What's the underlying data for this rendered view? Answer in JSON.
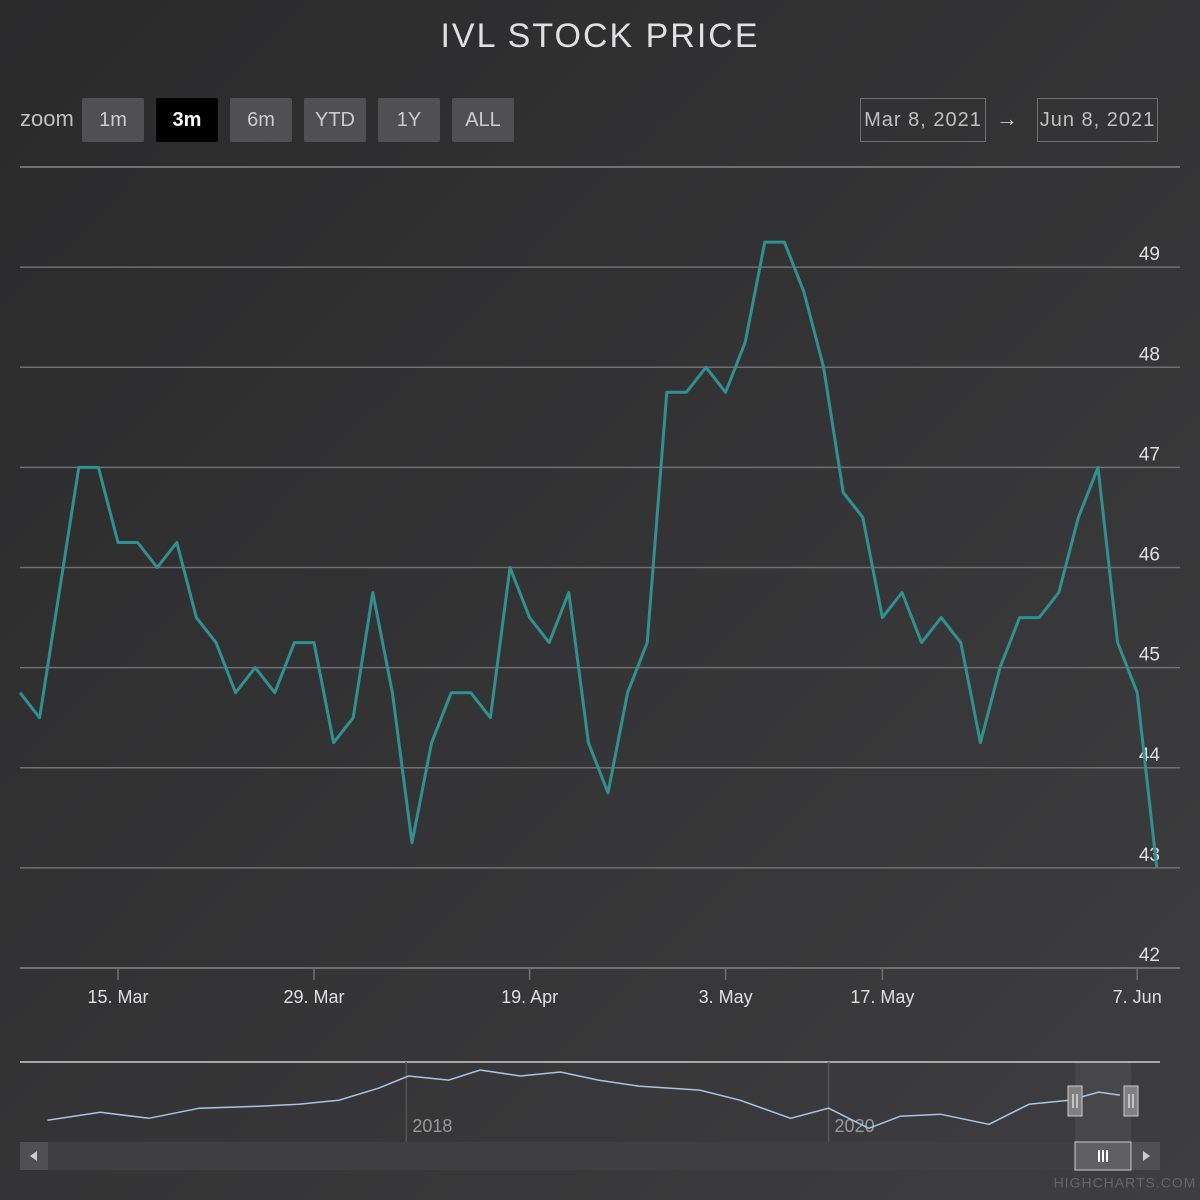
{
  "chart_data": {
    "type": "line",
    "title": "IVL STOCK PRICE",
    "categories": [
      null,
      null,
      null,
      null,
      null,
      "15. Mar",
      null,
      null,
      null,
      null,
      null,
      null,
      null,
      null,
      null,
      "29. Mar",
      null,
      null,
      null,
      null,
      null,
      null,
      null,
      null,
      null,
      null,
      "19. Apr",
      null,
      null,
      null,
      null,
      null,
      null,
      null,
      null,
      null,
      "3. May",
      null,
      null,
      null,
      null,
      null,
      null,
      null,
      "17. May",
      null,
      null,
      null,
      null,
      null,
      null,
      null,
      null,
      null,
      null,
      null,
      null,
      "7. Jun",
      null
    ],
    "values": [
      44.75,
      44.5,
      45.75,
      47,
      47,
      46.25,
      46.25,
      46,
      46.25,
      45.5,
      45.25,
      44.75,
      45,
      44.75,
      45.25,
      45.25,
      44.25,
      44.5,
      45.75,
      44.75,
      43.25,
      44.25,
      44.75,
      44.75,
      44.5,
      46,
      45.5,
      45.25,
      45.75,
      44.25,
      43.75,
      44.75,
      45.25,
      47.75,
      47.75,
      48,
      47.75,
      48.25,
      49.25,
      49.25,
      48.75,
      48,
      46.75,
      46.5,
      45.5,
      45.75,
      45.25,
      45.5,
      45.25,
      44.25,
      45,
      45.5,
      45.5,
      45.75,
      46.5,
      47,
      45.25,
      44.75,
      43
    ],
    "color": "#2f9191",
    "ylim": [
      42,
      50
    ],
    "yticks": [
      42,
      43,
      44,
      45,
      46,
      47,
      48,
      49
    ],
    "grid": true,
    "navigator": {
      "type": "line",
      "color": "#a9c4e8",
      "x": [
        2016.3,
        2016.55,
        2016.78,
        2017.02,
        2017.3,
        2017.49,
        2017.68,
        2017.87,
        2018.01,
        2018.2,
        2018.35,
        2018.54,
        2018.73,
        2018.91,
        2019.1,
        2019.39,
        2019.58,
        2019.82,
        2020.0,
        2020.19,
        2020.34,
        2020.53,
        2020.76,
        2020.95,
        2021.14,
        2021.28,
        2021.38
      ],
      "values": [
        32.8,
        37.6,
        34,
        40,
        41.2,
        42.4,
        44.8,
        52,
        59.2,
        56.8,
        62.8,
        59.2,
        61.6,
        56.8,
        53.2,
        50.8,
        44.8,
        34,
        40,
        28,
        35.2,
        36.4,
        30.4,
        42.4,
        44.8,
        49.6,
        47.8
      ],
      "xlim": [
        2016.17,
        2021.57
      ],
      "ylim": [
        24,
        64
      ],
      "xticks": [
        2018,
        2020
      ]
    }
  },
  "range_selector": {
    "label": "zoom",
    "buttons": [
      "1m",
      "3m",
      "6m",
      "YTD",
      "1Y",
      "ALL"
    ],
    "selected": 1,
    "from": "Mar 8, 2021",
    "arrow": "→",
    "to": "Jun 8, 2021"
  },
  "credits": "HIGHCHARTS.COM"
}
